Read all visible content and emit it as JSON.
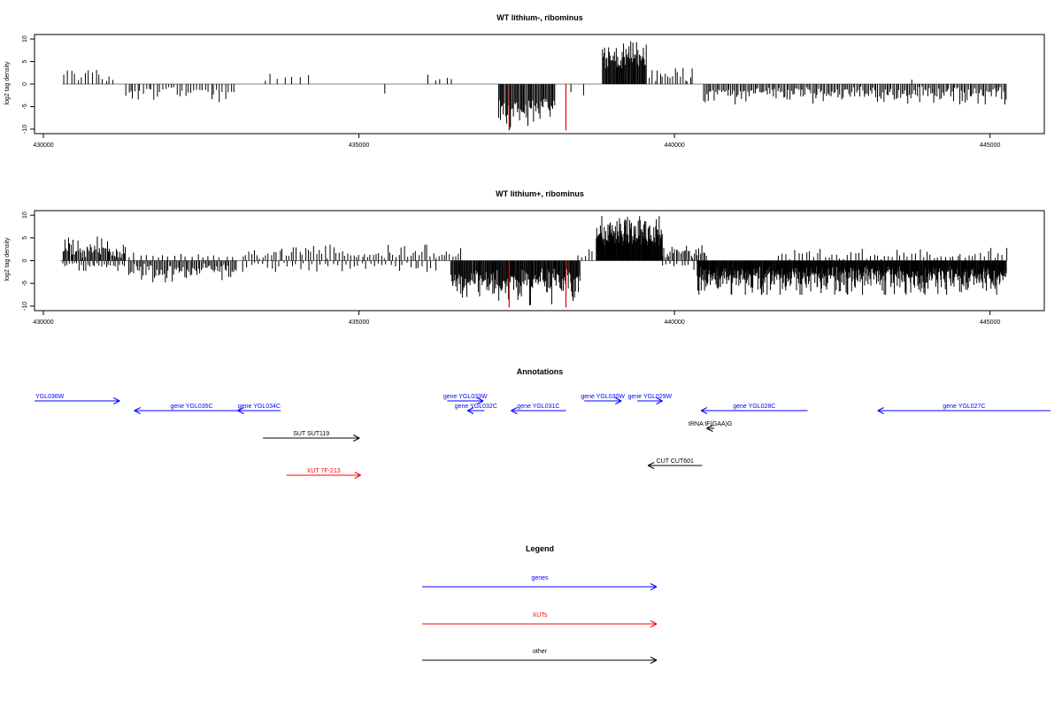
{
  "chart_data": [
    {
      "type": "bar",
      "title": "WT lithium-, ribominus",
      "ylabel": "log2 tag density",
      "xlabel": "",
      "xlim": [
        430000,
        446000
      ],
      "ylim": [
        -11,
        11
      ],
      "xticks": [
        430000,
        435000,
        440000,
        445000
      ],
      "xtick_labels": [
        "430000",
        "435000",
        "440000",
        "445000"
      ],
      "yticks": [
        10,
        5,
        0,
        -5,
        -10
      ],
      "ytick_labels": [
        "10",
        "5",
        "0",
        "-5",
        "-10"
      ],
      "grid": false,
      "baseline_color": "#808080",
      "bar_color": "#000000",
      "highlight_color": "#e00000",
      "highlights": [
        {
          "x": 437520,
          "value": -10.3
        },
        {
          "x": 438420,
          "value": -10.3
        }
      ],
      "segments": [
        {
          "start": 430480,
          "end": 431300,
          "sign": 1,
          "min": 0.5,
          "max": 3.8,
          "step": 55
        },
        {
          "start": 431450,
          "end": 433200,
          "sign": -1,
          "min": 0.5,
          "max": 4.0,
          "step": 45
        },
        {
          "start": 433650,
          "end": 434400,
          "sign": 1,
          "min": 0.5,
          "max": 2.6,
          "step": 110
        },
        {
          "start": 436250,
          "end": 436650,
          "sign": 1,
          "min": 0.8,
          "max": 2.4,
          "step": 95
        },
        {
          "start": 437350,
          "end": 438250,
          "sign": -1,
          "min": 2.5,
          "max": 10.0,
          "step": 16
        },
        {
          "start": 439000,
          "end": 439700,
          "sign": 1,
          "min": 3.0,
          "max": 9.5,
          "step": 12
        },
        {
          "start": 439750,
          "end": 440450,
          "sign": 1,
          "min": 0.5,
          "max": 4.0,
          "step": 40
        },
        {
          "start": 440600,
          "end": 445400,
          "sign": -1,
          "min": 0.5,
          "max": 4.5,
          "step": 24
        }
      ],
      "scatter_bars": [
        {
          "x": 431550,
          "value": -3.2
        },
        {
          "x": 435550,
          "value": -2.1
        },
        {
          "x": 438500,
          "value": -1.8
        },
        {
          "x": 438700,
          "value": -2.5
        },
        {
          "x": 443900,
          "value": 1.0
        }
      ]
    },
    {
      "type": "bar",
      "title": "WT lithium+, ribominus",
      "ylabel": "log2 tag density",
      "xlabel": "",
      "xlim": [
        430000,
        446000
      ],
      "ylim": [
        -11,
        11
      ],
      "xticks": [
        430000,
        435000,
        440000,
        445000
      ],
      "xtick_labels": [
        "430000",
        "435000",
        "440000",
        "445000"
      ],
      "yticks": [
        10,
        5,
        0,
        -5,
        -10
      ],
      "ytick_labels": [
        "10",
        "5",
        "0",
        "-5",
        "-10"
      ],
      "grid": false,
      "baseline_color": "#808080",
      "bar_color": "#000000",
      "highlight_color": "#e00000",
      "highlights": [
        {
          "x": 437520,
          "value": -10.3
        },
        {
          "x": 438420,
          "value": -10.3
        }
      ],
      "segments": [
        {
          "start": 430450,
          "end": 431450,
          "sign": 1,
          "min": 0.5,
          "max": 5.3,
          "step": 18
        },
        {
          "start": 430450,
          "end": 431450,
          "sign": -1,
          "min": 0.3,
          "max": 2.8,
          "step": 36
        },
        {
          "start": 431500,
          "end": 433200,
          "sign": -1,
          "min": 0.5,
          "max": 4.8,
          "step": 22
        },
        {
          "start": 431500,
          "end": 433200,
          "sign": 1,
          "min": 0.3,
          "max": 1.8,
          "step": 90
        },
        {
          "start": 433300,
          "end": 436400,
          "sign": 1,
          "min": 0.3,
          "max": 3.5,
          "step": 45
        },
        {
          "start": 433300,
          "end": 436400,
          "sign": -1,
          "min": 0.3,
          "max": 2.5,
          "step": 65
        },
        {
          "start": 436400,
          "end": 436800,
          "sign": 1,
          "min": 0.5,
          "max": 2.8,
          "step": 45
        },
        {
          "start": 436600,
          "end": 438650,
          "sign": -1,
          "min": 1.5,
          "max": 9.8,
          "step": 12
        },
        {
          "start": 438600,
          "end": 438850,
          "sign": 1,
          "min": 0.5,
          "max": 2.5,
          "step": 60
        },
        {
          "start": 438900,
          "end": 439950,
          "sign": 1,
          "min": 3.0,
          "max": 9.8,
          "step": 8
        },
        {
          "start": 439950,
          "end": 440650,
          "sign": 1,
          "min": 0.5,
          "max": 4.0,
          "step": 24
        },
        {
          "start": 439950,
          "end": 440650,
          "sign": -1,
          "min": 0.3,
          "max": 2.0,
          "step": 60
        },
        {
          "start": 440500,
          "end": 445400,
          "sign": -1,
          "min": 1.0,
          "max": 7.5,
          "step": 9
        },
        {
          "start": 441800,
          "end": 445400,
          "sign": 1,
          "min": 0.3,
          "max": 2.8,
          "step": 60
        }
      ],
      "scatter_bars": []
    }
  ],
  "annotations": {
    "title": "Annotations",
    "items": [
      {
        "label": "YGL036W",
        "start": 430000,
        "end": 431350,
        "dir": "right",
        "row": 0,
        "color": "#0000ff"
      },
      {
        "label": "gene YGL035C",
        "start": 431580,
        "end": 433400,
        "dir": "left",
        "row": 1,
        "color": "#0000ff"
      },
      {
        "label": "gene YGL034C",
        "start": 433220,
        "end": 433900,
        "dir": "left",
        "row": 1,
        "color": "#0000ff"
      },
      {
        "label": "gene YGL033W",
        "start": 436540,
        "end": 437110,
        "dir": "right",
        "row": 0,
        "color": "#0000ff"
      },
      {
        "label": "gene YGL032C",
        "start": 436860,
        "end": 437130,
        "dir": "left",
        "row": 1,
        "color": "#0000ff"
      },
      {
        "label": "gene YGL031C",
        "start": 437550,
        "end": 438420,
        "dir": "left",
        "row": 1,
        "color": "#0000ff"
      },
      {
        "label": "gene YGL030W",
        "start": 438710,
        "end": 439300,
        "dir": "right",
        "row": 0,
        "color": "#0000ff"
      },
      {
        "label": "gene YGL029W",
        "start": 439550,
        "end": 439950,
        "dir": "right",
        "row": 0,
        "color": "#0000ff"
      },
      {
        "label": "gene YGL028C",
        "start": 440560,
        "end": 442250,
        "dir": "left",
        "row": 1,
        "color": "#0000ff"
      },
      {
        "label": "gene YGL027C",
        "start": 443360,
        "end": 446100,
        "dir": "left",
        "row": 1,
        "color": "#0000ff"
      },
      {
        "label": "tRNA tF(GAA)G",
        "start": 440650,
        "end": 440770,
        "dir": "left",
        "row": 2,
        "color": "#000000"
      },
      {
        "label": "SUT SUT119",
        "start": 433620,
        "end": 435150,
        "dir": "right",
        "row": 3,
        "color": "#000000"
      },
      {
        "label": "CUT CUT601",
        "start": 439720,
        "end": 440580,
        "dir": "left",
        "row": 4,
        "color": "#000000"
      },
      {
        "label": "XUT 7F-213",
        "start": 433990,
        "end": 435170,
        "dir": "right",
        "row": 5,
        "color": "#ff0000"
      }
    ]
  },
  "legend": {
    "title": "Legend",
    "entries": [
      {
        "label": "genes",
        "color": "#0000ff"
      },
      {
        "label": "XUTs",
        "color": "#ff0000"
      },
      {
        "label": "other",
        "color": "#000000"
      }
    ]
  }
}
